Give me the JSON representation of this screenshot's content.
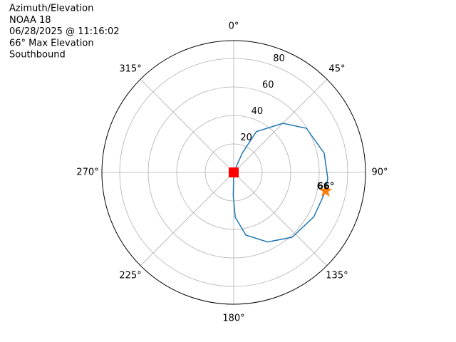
{
  "chart_data": {
    "type": "polar",
    "title_lines": [
      "Azimuth/Elevation",
      "NOAA 18",
      "06/28/2025 @ 11:16:02",
      "66° Max Elevation",
      "Southbound"
    ],
    "theta_zero": "N",
    "theta_direction": "clockwise",
    "rlim": [
      0,
      92.5
    ],
    "rticks": [
      20,
      40,
      60,
      80
    ],
    "thetaticks": [
      {
        "value": 0,
        "label": "0°"
      },
      {
        "value": 45,
        "label": "45°"
      },
      {
        "value": 90,
        "label": "90°"
      },
      {
        "value": 135,
        "label": "135°"
      },
      {
        "value": 180,
        "label": "180°"
      },
      {
        "value": 225,
        "label": "225°"
      },
      {
        "value": 270,
        "label": "270°"
      },
      {
        "value": 315,
        "label": "315°"
      }
    ],
    "grid": true,
    "series": [
      {
        "marker": "line",
        "color": "#1f77b4",
        "theta": [
          30,
          24,
          29,
          45,
          58.7,
          78,
          93.5,
          101.4,
          119,
          138,
          154,
          169,
          178,
          181,
          181
        ],
        "r": [
          0,
          14.8,
          32.7,
          48.8,
          59.7,
          64.9,
          66.1,
          65.8,
          64.3,
          61.2,
          54.3,
          44.8,
          31.5,
          16.5,
          0
        ]
      },
      {
        "marker": "circle",
        "color": "#2ca02c",
        "theta": [
          30
        ],
        "r": [
          0
        ]
      },
      {
        "marker": "square",
        "color": "#ff0000",
        "theta": [
          181
        ],
        "r": [
          0
        ]
      },
      {
        "marker": "star",
        "color": "#ff7f0e",
        "theta": [
          101.4
        ],
        "r": [
          65.8
        ]
      }
    ],
    "annotation": {
      "text": "66°",
      "series": 3
    }
  }
}
